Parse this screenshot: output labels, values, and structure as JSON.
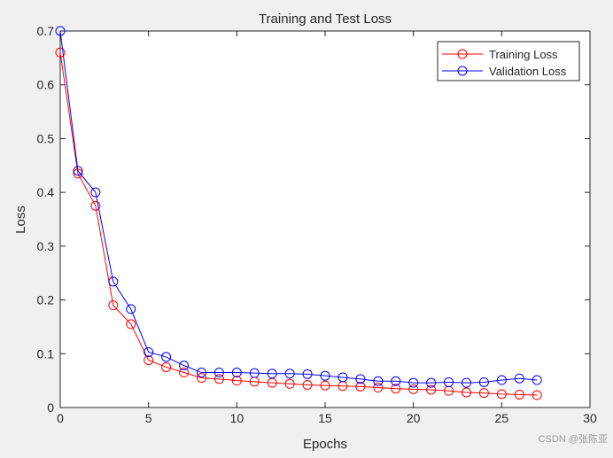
{
  "chart_data": {
    "type": "line",
    "title": "Training and Test Loss",
    "xlabel": "Epochs",
    "ylabel": "Loss",
    "xlim": [
      0,
      30
    ],
    "ylim": [
      0,
      0.7
    ],
    "xticks": [
      0,
      5,
      10,
      15,
      20,
      25,
      30
    ],
    "xtick_labels": [
      "0",
      "5",
      "10",
      "15",
      "20",
      "25",
      "30"
    ],
    "yticks": [
      0,
      0.1,
      0.2,
      0.3,
      0.4,
      0.5,
      0.6,
      0.7
    ],
    "ytick_labels": [
      "0",
      "0.1",
      "0.2",
      "0.3",
      "0.4",
      "0.5",
      "0.6",
      "0.7"
    ],
    "grid": false,
    "legend_position": "top-right",
    "x": [
      0,
      1,
      2,
      3,
      4,
      5,
      6,
      7,
      8,
      9,
      10,
      11,
      12,
      13,
      14,
      15,
      16,
      17,
      18,
      19,
      20,
      21,
      22,
      23,
      24,
      25,
      26,
      27
    ],
    "series": [
      {
        "name": "Training Loss",
        "color": "#ff0000",
        "marker": "circle",
        "values": [
          0.66,
          0.435,
          0.375,
          0.19,
          0.155,
          0.088,
          0.075,
          0.065,
          0.055,
          0.053,
          0.05,
          0.048,
          0.046,
          0.044,
          0.042,
          0.041,
          0.04,
          0.039,
          0.037,
          0.035,
          0.034,
          0.033,
          0.031,
          0.028,
          0.027,
          0.025,
          0.024,
          0.023
        ]
      },
      {
        "name": "Validation Loss",
        "color": "#0000ff",
        "marker": "circle",
        "values": [
          0.7,
          0.44,
          0.4,
          0.234,
          0.183,
          0.103,
          0.094,
          0.078,
          0.065,
          0.065,
          0.065,
          0.064,
          0.063,
          0.063,
          0.062,
          0.059,
          0.056,
          0.053,
          0.049,
          0.049,
          0.046,
          0.046,
          0.047,
          0.046,
          0.047,
          0.051,
          0.054,
          0.051
        ]
      }
    ]
  },
  "watermark": "CSDN @张陈亚"
}
